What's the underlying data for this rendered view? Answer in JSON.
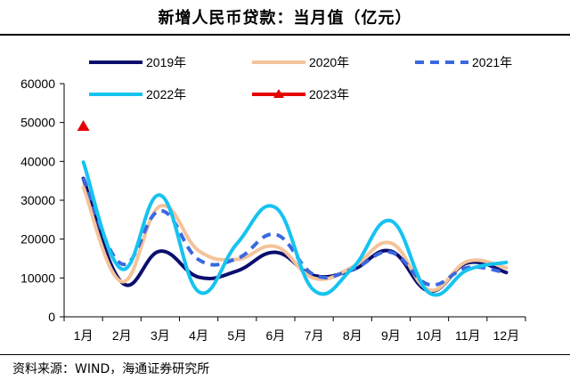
{
  "chart_data": {
    "type": "line",
    "title": "新增人民币贷款：当月值（亿元）",
    "categories": [
      "1月",
      "2月",
      "3月",
      "4月",
      "5月",
      "6月",
      "7月",
      "8月",
      "9月",
      "10月",
      "11月",
      "12月"
    ],
    "ylim": [
      0,
      60000
    ],
    "yticks": [
      "0",
      "10000",
      "20000",
      "30000",
      "40000",
      "50000",
      "60000"
    ],
    "grid": false,
    "legend_position": "top",
    "series": [
      {
        "name": "2019年",
        "color": "#0b0e6e",
        "style": "solid",
        "values": [
          35600,
          8858,
          16900,
          10200,
          11800,
          16600,
          10600,
          12100,
          16900,
          6613,
          13900,
          11400
        ]
      },
      {
        "name": "2020年",
        "color": "#f4c39a",
        "style": "solid",
        "values": [
          33400,
          9057,
          28500,
          17000,
          14800,
          18100,
          9927,
          12800,
          19000,
          6898,
          14300,
          12600
        ]
      },
      {
        "name": "2021年",
        "color": "#3b68e0",
        "style": "dashed",
        "values": [
          35800,
          13600,
          27300,
          14700,
          15000,
          21200,
          10800,
          12200,
          16600,
          8262,
          12700,
          11300
        ]
      },
      {
        "name": "2022年",
        "color": "#16c3f0",
        "style": "solid",
        "values": [
          39800,
          12300,
          31300,
          6454,
          18900,
          28100,
          6790,
          12500,
          24700,
          6152,
          12100,
          14000
        ]
      },
      {
        "name": "2023年",
        "color": "#e60000",
        "style": "marker",
        "values": [
          49000,
          null,
          null,
          null,
          null,
          null,
          null,
          null,
          null,
          null,
          null,
          null
        ]
      }
    ]
  },
  "footer": {
    "source": "资料来源：WIND，海通证券研究所"
  }
}
